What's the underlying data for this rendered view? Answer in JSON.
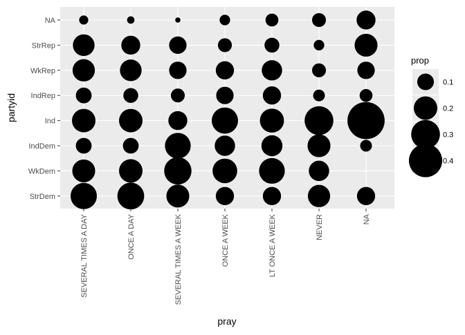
{
  "chart_data": {
    "type": "scatter",
    "xlabel": "pray",
    "ylabel": "partyid",
    "x_categories": [
      "SEVERAL TIMES A DAY",
      "ONCE A DAY",
      "SEVERAL TIMES A WEEK",
      "ONCE A WEEK",
      "LT ONCE A WEEK",
      "NEVER",
      "NA"
    ],
    "y_categories": [
      "NA",
      "StrRep",
      "WkRep",
      "IndRep",
      "Ind",
      "IndDem",
      "WkDem",
      "StrDem"
    ],
    "size_legend": {
      "title": "prop",
      "values": [
        0.1,
        0.2,
        0.3,
        0.4
      ],
      "labels": [
        "0.1",
        "0.2",
        "0.3",
        "0.4"
      ]
    },
    "points": [
      {
        "x": "SEVERAL TIMES A DAY",
        "y": "NA",
        "prop": 0.03
      },
      {
        "x": "ONCE A DAY",
        "y": "NA",
        "prop": 0.02
      },
      {
        "x": "SEVERAL TIMES A WEEK",
        "y": "NA",
        "prop": 0.01
      },
      {
        "x": "ONCE A WEEK",
        "y": "NA",
        "prop": 0.04
      },
      {
        "x": "LT ONCE A WEEK",
        "y": "NA",
        "prop": 0.06
      },
      {
        "x": "NEVER",
        "y": "NA",
        "prop": 0.07
      },
      {
        "x": "NA",
        "y": "NA",
        "prop": 0.13
      },
      {
        "x": "SEVERAL TIMES A DAY",
        "y": "StrRep",
        "prop": 0.17
      },
      {
        "x": "ONCE A DAY",
        "y": "StrRep",
        "prop": 0.13
      },
      {
        "x": "SEVERAL TIMES A WEEK",
        "y": "StrRep",
        "prop": 0.11
      },
      {
        "x": "ONCE A WEEK",
        "y": "StrRep",
        "prop": 0.07
      },
      {
        "x": "LT ONCE A WEEK",
        "y": "StrRep",
        "prop": 0.08
      },
      {
        "x": "NEVER",
        "y": "StrRep",
        "prop": 0.04
      },
      {
        "x": "NA",
        "y": "StrRep",
        "prop": 0.19
      },
      {
        "x": "SEVERAL TIMES A DAY",
        "y": "WkRep",
        "prop": 0.18
      },
      {
        "x": "ONCE A DAY",
        "y": "WkRep",
        "prop": 0.17
      },
      {
        "x": "SEVERAL TIMES A WEEK",
        "y": "WkRep",
        "prop": 0.11
      },
      {
        "x": "ONCE A WEEK",
        "y": "WkRep",
        "prop": 0.12
      },
      {
        "x": "LT ONCE A WEEK",
        "y": "WkRep",
        "prop": 0.15
      },
      {
        "x": "NEVER",
        "y": "WkRep",
        "prop": 0.07
      },
      {
        "x": "NA",
        "y": "WkRep",
        "prop": 0.11
      },
      {
        "x": "SEVERAL TIMES A DAY",
        "y": "IndRep",
        "prop": 0.09
      },
      {
        "x": "ONCE A DAY",
        "y": "IndRep",
        "prop": 0.08
      },
      {
        "x": "SEVERAL TIMES A WEEK",
        "y": "IndRep",
        "prop": 0.07
      },
      {
        "x": "ONCE A WEEK",
        "y": "IndRep",
        "prop": 0.11
      },
      {
        "x": "LT ONCE A WEEK",
        "y": "IndRep",
        "prop": 0.12
      },
      {
        "x": "NEVER",
        "y": "IndRep",
        "prop": 0.05
      },
      {
        "x": "NA",
        "y": "IndRep",
        "prop": 0.06
      },
      {
        "x": "SEVERAL TIMES A DAY",
        "y": "Ind",
        "prop": 0.2
      },
      {
        "x": "ONCE A DAY",
        "y": "Ind",
        "prop": 0.2
      },
      {
        "x": "SEVERAL TIMES A WEEK",
        "y": "Ind",
        "prop": 0.13
      },
      {
        "x": "ONCE A WEEK",
        "y": "Ind",
        "prop": 0.25
      },
      {
        "x": "LT ONCE A WEEK",
        "y": "Ind",
        "prop": 0.21
      },
      {
        "x": "NEVER",
        "y": "Ind",
        "prop": 0.3
      },
      {
        "x": "NA",
        "y": "Ind",
        "prop": 0.5
      },
      {
        "x": "SEVERAL TIMES A DAY",
        "y": "IndDem",
        "prop": 0.09
      },
      {
        "x": "ONCE A DAY",
        "y": "IndDem",
        "prop": 0.09
      },
      {
        "x": "SEVERAL TIMES A WEEK",
        "y": "IndDem",
        "prop": 0.24
      },
      {
        "x": "ONCE A WEEK",
        "y": "IndDem",
        "prop": 0.15
      },
      {
        "x": "LT ONCE A WEEK",
        "y": "IndDem",
        "prop": 0.16
      },
      {
        "x": "NEVER",
        "y": "IndDem",
        "prop": 0.19
      },
      {
        "x": "NA",
        "y": "IndDem",
        "prop": 0.05
      },
      {
        "x": "SEVERAL TIMES A DAY",
        "y": "WkDem",
        "prop": 0.19
      },
      {
        "x": "ONCE A DAY",
        "y": "WkDem",
        "prop": 0.2
      },
      {
        "x": "SEVERAL TIMES A WEEK",
        "y": "WkDem",
        "prop": 0.27
      },
      {
        "x": "ONCE A WEEK",
        "y": "WkDem",
        "prop": 0.22
      },
      {
        "x": "LT ONCE A WEEK",
        "y": "WkDem",
        "prop": 0.24
      },
      {
        "x": "NEVER",
        "y": "WkDem",
        "prop": 0.15
      },
      {
        "x": "SEVERAL TIMES A DAY",
        "y": "StrDem",
        "prop": 0.25
      },
      {
        "x": "ONCE A DAY",
        "y": "StrDem",
        "prop": 0.26
      },
      {
        "x": "SEVERAL TIMES A WEEK",
        "y": "StrDem",
        "prop": 0.19
      },
      {
        "x": "ONCE A WEEK",
        "y": "StrDem",
        "prop": 0.12
      },
      {
        "x": "LT ONCE A WEEK",
        "y": "StrDem",
        "prop": 0.12
      },
      {
        "x": "NEVER",
        "y": "StrDem",
        "prop": 0.18
      },
      {
        "x": "NA",
        "y": "StrDem",
        "prop": 0.12
      }
    ],
    "colors": {
      "panel_background": "#ebebeb",
      "grid": "#ffffff",
      "point": "#000000",
      "text": "#4d4d4d",
      "title_text": "#000000"
    }
  }
}
